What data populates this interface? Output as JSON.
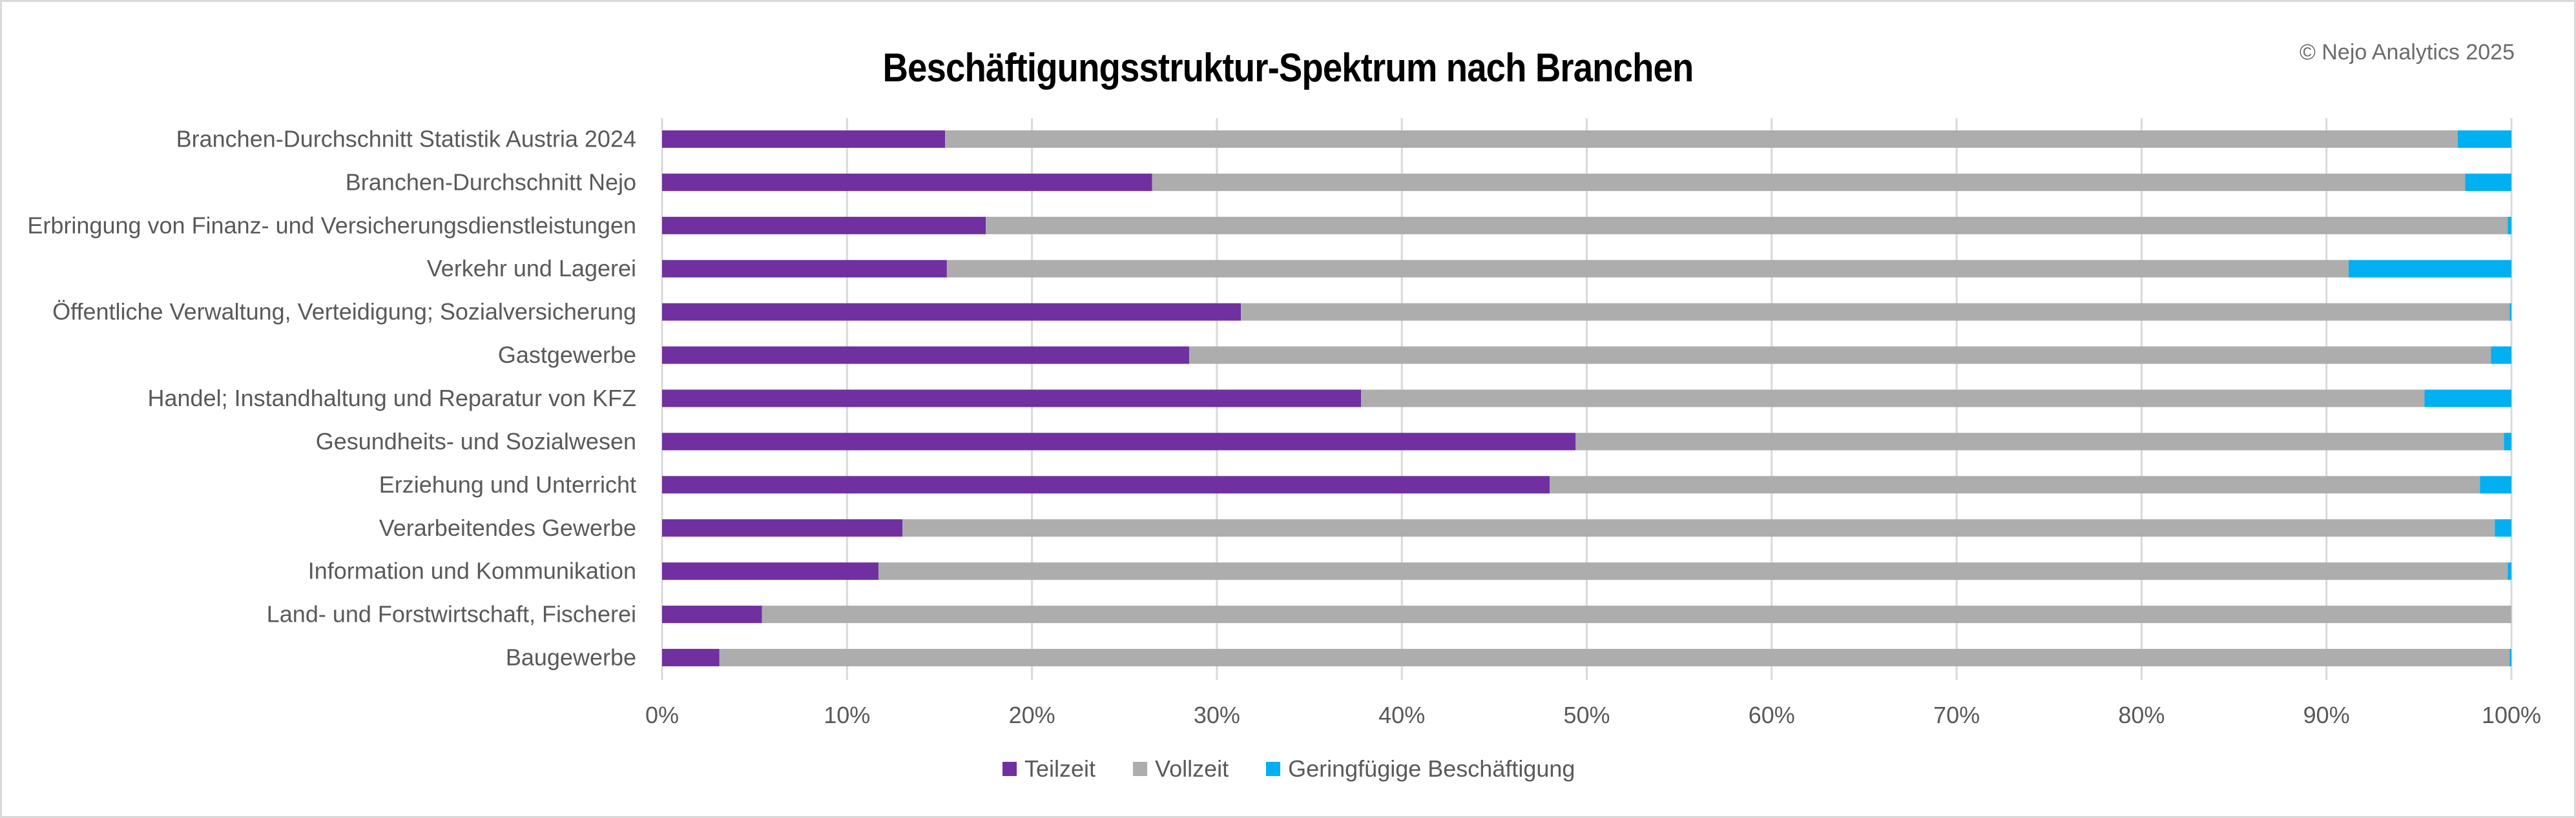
{
  "header": {
    "title": "Beschäftigungsstruktur-Spektrum nach Branchen",
    "copyright": "© Nejo Analytics 2025"
  },
  "colors": {
    "Teilzeit": "#7030a0",
    "Vollzeit": "#adadad",
    "Geringfuegig": "#00b0f0",
    "gridline": "#d9d9d9",
    "text": "#595959"
  },
  "chart_data": {
    "type": "bar",
    "orientation": "horizontal",
    "stacked": "percent",
    "title": "Beschäftigungsstruktur-Spektrum nach Branchen",
    "xlabel": "",
    "ylabel": "",
    "xlim": [
      0,
      100
    ],
    "grid": true,
    "legend_position": "bottom",
    "x_tick_labels": [
      "0%",
      "10%",
      "20%",
      "30%",
      "40%",
      "50%",
      "60%",
      "70%",
      "80%",
      "90%",
      "100%"
    ],
    "categories": [
      "Branchen-Durchschnitt Statistik Austria 2024",
      "Branchen-Durchschnitt Nejo",
      "Erbringung von Finanz- und Versicherungsdienstleistungen",
      "Verkehr und Lagerei",
      "Öffentliche Verwaltung, Verteidigung; Sozialversicherung",
      "Gastgewerbe",
      "Handel; Instandhaltung und Reparatur von KFZ",
      "Gesundheits- und Sozialwesen",
      "Erziehung und Unterricht",
      "Verarbeitendes Gewerbe",
      "Information und Kommunikation",
      "Land- und Forstwirtschaft, Fischerei",
      "Baugewerbe"
    ],
    "series": [
      {
        "name": "Teilzeit",
        "values": [
          15.3,
          26.5,
          17.5,
          15.4,
          31.3,
          28.5,
          37.8,
          49.4,
          48.0,
          13.0,
          11.7,
          5.4,
          3.1
        ]
      },
      {
        "name": "Vollzeit",
        "values": [
          81.8,
          71.0,
          82.3,
          75.8,
          68.6,
          70.4,
          57.5,
          50.2,
          50.3,
          86.1,
          88.1,
          94.6,
          96.8
        ]
      },
      {
        "name": "Geringfügige Beschäftigung",
        "values": [
          2.9,
          2.5,
          0.2,
          8.8,
          0.1,
          1.1,
          4.7,
          0.4,
          1.7,
          0.9,
          0.2,
          0.0,
          0.1
        ]
      }
    ]
  },
  "legend": {
    "items": [
      {
        "label": "Teilzeit",
        "color": "#7030a0"
      },
      {
        "label": "Vollzeit",
        "color": "#adadad"
      },
      {
        "label": "Geringfügige Beschäftigung",
        "color": "#00b0f0"
      }
    ]
  }
}
